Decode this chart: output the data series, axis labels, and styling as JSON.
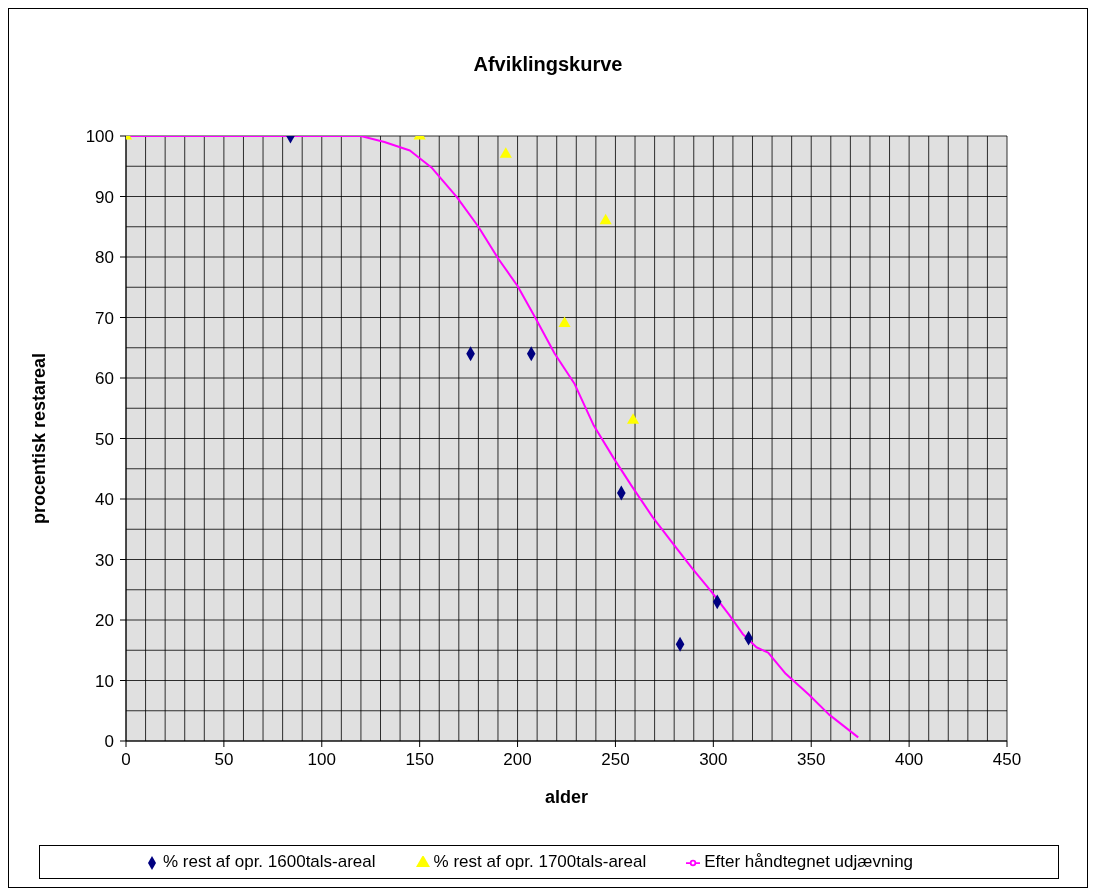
{
  "chart_data": {
    "type": "scatter",
    "title": "Afviklingskurve",
    "xlabel": "alder",
    "ylabel": "procentisk restareal",
    "xlim": [
      0,
      450
    ],
    "xticks": [
      0,
      50,
      100,
      150,
      200,
      250,
      300,
      350,
      400,
      450
    ],
    "ylim": [
      0,
      100
    ],
    "yticks": [
      0,
      10,
      20,
      30,
      40,
      50,
      60,
      70,
      80,
      90,
      100
    ],
    "grid": true,
    "legend": "bottom",
    "series": [
      {
        "name": "% rest af opr. 1600tals-areal",
        "type": "scatter",
        "marker": "diamond",
        "color": "#000080",
        "x": [
          84,
          176,
          207,
          253,
          283,
          302,
          318
        ],
        "values": [
          100,
          64,
          64,
          41,
          16,
          23,
          17
        ]
      },
      {
        "name": "% rest af opr. 1700tals-areal",
        "type": "scatter",
        "marker": "triangle",
        "color": "#ffff00",
        "x": [
          0,
          150,
          194,
          224,
          245,
          259
        ],
        "values": [
          100,
          100,
          97,
          69,
          86,
          53
        ]
      },
      {
        "name": "Efter  håndtegnet udjævning",
        "type": "line",
        "marker": "none",
        "color": "#ff00ff",
        "x": [
          0,
          109,
          115,
          120,
          132,
          145,
          156,
          169,
          180,
          190,
          200,
          209,
          219,
          229,
          239,
          249,
          258,
          269,
          279,
          289,
          299,
          308,
          315,
          322,
          328,
          337,
          349,
          359,
          374
        ],
        "values": [
          100,
          100,
          100,
          100,
          99,
          97.6,
          94.8,
          89.9,
          85,
          79.8,
          75.2,
          70,
          64,
          59.1,
          52.1,
          46.8,
          42.3,
          37,
          32.8,
          28.6,
          24.7,
          20.9,
          17.7,
          15.5,
          14.6,
          11.1,
          7.6,
          4.4,
          0.6
        ]
      }
    ]
  }
}
